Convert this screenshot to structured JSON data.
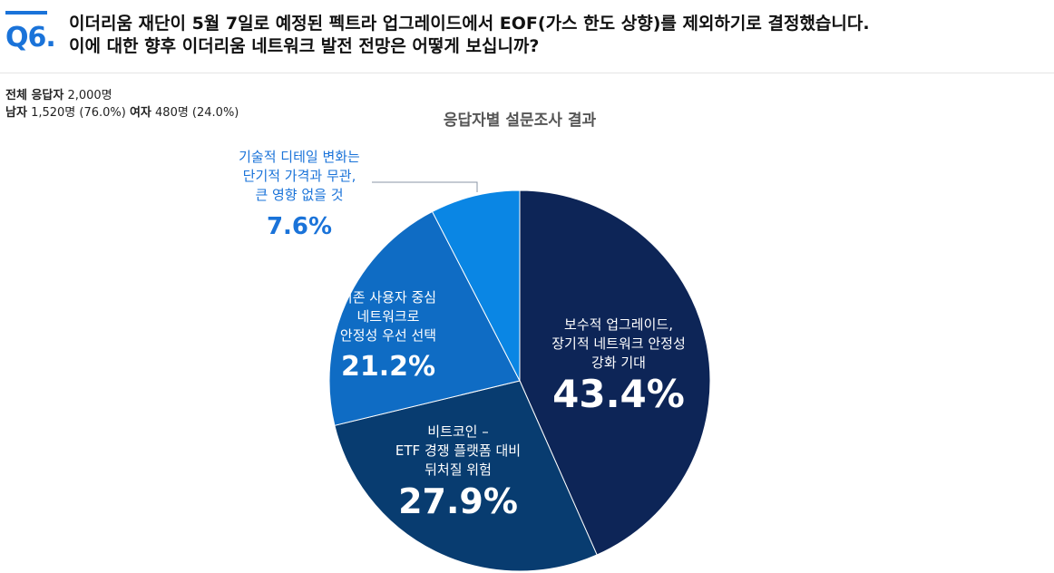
{
  "question": {
    "number": "Q6.",
    "line1": "이더리움 재단이 5월 7일로 예정된 펙트라 업그레이드에서 EOF(가스 한도 상향)를 제외하기로 결정했습니다.",
    "line2": "이에 대한 향후 이더리움 네트워크 발전 전망은 어떻게 보십니까?"
  },
  "respondents": {
    "total_label": "전체 응답자",
    "total_value": "2,000명",
    "male_label": "남자",
    "male_value": "1,520명 (76.0%)",
    "female_label": "여자",
    "female_value": "480명 (24.0%)"
  },
  "colors": {
    "accent": "#1a73d9",
    "slice_1": "#0d2557",
    "slice_2": "#083c70",
    "slice_3": "#0f6cc4",
    "slice_4": "#0a86e4"
  },
  "chart_data": {
    "type": "pie",
    "title": "응답자별 설문조사 결과",
    "start": "12 o'clock, clockwise",
    "slices": [
      {
        "label_lines": [
          "보수적 업그레이드,",
          "장기적 네트워크 안정성",
          "강화 기대"
        ],
        "value": 43.4,
        "value_label": "43.4%",
        "color": "#0d2557"
      },
      {
        "label_lines": [
          "비트코인 –",
          "ETF 경쟁 플랫폼 대비",
          "뒤처질 위험"
        ],
        "value": 27.9,
        "value_label": "27.9%",
        "color": "#083c70"
      },
      {
        "label_lines": [
          "기존 사용자 중심",
          "네트워크로",
          "안정성 우선 선택"
        ],
        "value": 21.2,
        "value_label": "21.2%",
        "color": "#0f6cc4"
      },
      {
        "label_lines": [
          "기술적 디테일 변화는",
          "단기적 가격과 무관,",
          "큰 영향 없을 것"
        ],
        "value": 7.6,
        "value_label": "7.6%",
        "color": "#0a86e4"
      }
    ]
  }
}
